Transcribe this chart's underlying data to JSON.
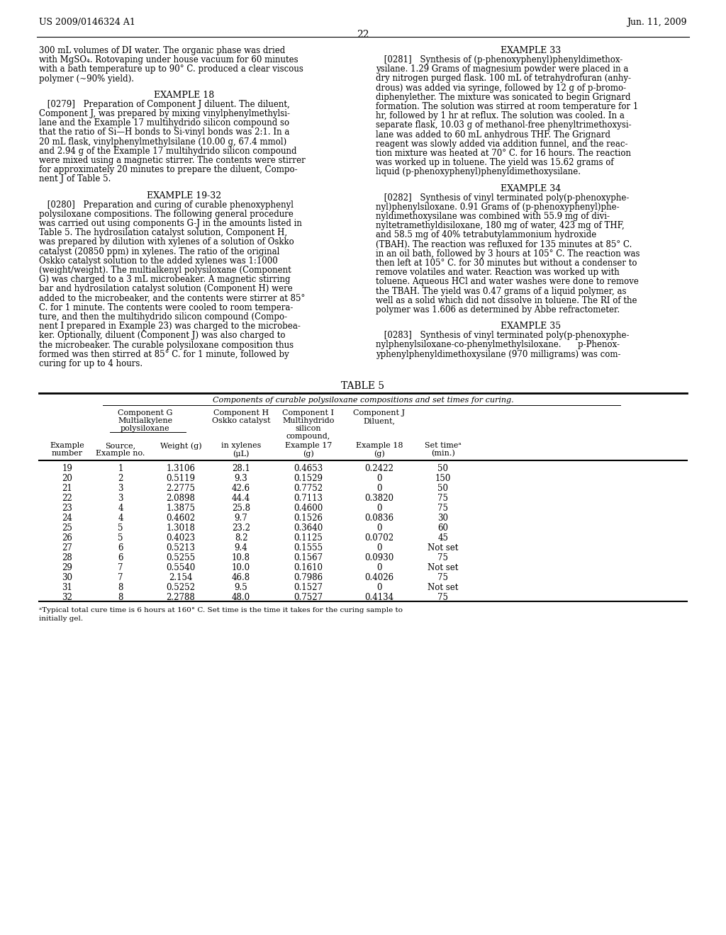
{
  "page_number": "22",
  "header_left": "US 2009/0146324 A1",
  "header_right": "Jun. 11, 2009",
  "background_color": "#ffffff",
  "left_col_para1": [
    "300 mL volumes of DI water. The organic phase was dried",
    "with MgSO₄. Rotovaping under house vacuum for 60 minutes",
    "with a bath temperature up to 90° C. produced a clear viscous",
    "polymer (~90% yield)."
  ],
  "ex18_heading": "EXAMPLE 18",
  "left_col_para2": [
    " [0279] Preparation of Component J diluent. The diluent,",
    "Component J, was prepared by mixing vinylphenylmethylsi-",
    "lane and the Example 17 multihydrido silicon compound so",
    "that the ratio of Si—H bonds to Si-vinyl bonds was 2:1. In a",
    "20 mL flask, vinylphenylmethylsilane (10.00 g, 67.4 mmol)",
    "and 2.94 g of the Example 17 multihydrido silicon compound",
    "were mixed using a magnetic stirrer. The contents were stirrer",
    "for approximately 20 minutes to prepare the diluent, Compo-",
    "nent J of Table 5."
  ],
  "ex1932_heading": "EXAMPLE 19-32",
  "left_col_para3": [
    " [0280] Preparation and curing of curable phenoxyphenyl",
    "polysiloxane compositions. The following general procedure",
    "was carried out using components G-J in the amounts listed in",
    "Table 5. The hydrosilation catalyst solution, Component H,",
    "was prepared by dilution with xylenes of a solution of Oskko",
    "catalyst (20850 ppm) in xylenes. The ratio of the original",
    "Oskko catalyst solution to the added xylenes was 1:1000",
    "(weight/weight). The multialkenyl polysiloxane (Component",
    "G) was charged to a 3 mL microbeaker. A magnetic stirring",
    "bar and hydrosilation catalyst solution (Component H) were",
    "added to the microbeaker, and the contents were stirrer at 85°",
    "C. for 1 minute. The contents were cooled to room tempera-",
    "ture, and then the multihydrido silicon compound (Compo-",
    "nent I prepared in Example 23) was charged to the microbea-",
    "ker. Optionally, diluent (Component J) was also charged to",
    "the microbeaker. The curable polysiloxane composition thus",
    "formed was then stirred at 85° C. for 1 minute, followed by",
    "curing for up to 4 hours."
  ],
  "ex33_heading": "EXAMPLE 33",
  "right_col_para1": [
    " [0281] Synthesis of (p-phenoxyphenyl)phenyldimethox-",
    "ysilane. 1.29 Grams of magnesium powder were placed in a",
    "dry nitrogen purged flask. 100 mL of tetrahydrofuran (anhy-",
    "drous) was added via syringe, followed by 12 g of p-bromo-",
    "diphenylether. The mixture was sonicated to begin Grignard",
    "formation. The solution was stirred at room temperature for 1",
    "hr, followed by 1 hr at reflux. The solution was cooled. In a",
    "separate flask, 10.03 g of methanol-free phenyltrimethoxysi-",
    "lane was added to 60 mL anhydrous THF. The Grignard",
    "reagent was slowly added via addition funnel, and the reac-",
    "tion mixture was heated at 70° C. for 16 hours. The reaction",
    "was worked up in toluene. The yield was 15.62 grams of",
    "liquid (p-phenoxyphenyl)phenyldimethoxysilane."
  ],
  "ex34_heading": "EXAMPLE 34",
  "right_col_para2": [
    " [0282] Synthesis of vinyl terminated poly(p-phenoxyphe-",
    "nyl)phenylsiloxane. 0.91 Grams of (p-phenoxyphenyl)phe-",
    "nyldimethoxysilane was combined with 55.9 mg of divi-",
    "nyltetramethyldisiloxane, 180 mg of water, 423 mg of THF,",
    "and 58.5 mg of 40% tetrabutylammonium hydroxide",
    "(TBAH). The reaction was refluxed for 135 minutes at 85° C.",
    "in an oil bath, followed by 3 hours at 105° C. The reaction was",
    "then left at 105° C. for 30 minutes but without a condenser to",
    "remove volatiles and water. Reaction was worked up with",
    "toluene. Aqueous HCl and water washes were done to remove",
    "the TBAH. The yield was 0.47 grams of a liquid polymer, as",
    "well as a solid which did not dissolve in toluene. The RI of the",
    "polymer was 1.606 as determined by Abbe refractometer."
  ],
  "ex35_heading": "EXAMPLE 35",
  "right_col_para3": [
    " [0283] Synthesis of vinyl terminated poly(p-phenoxyphe-",
    "nylphenylsiloxane-co-phenylmethylsiloxane.  p-Phenox-",
    "yphenylphenyldimethoxysilane (970 milligrams) was com-"
  ],
  "table_title": "TABLE 5",
  "table_caption": "Components of curable polysiloxane compositions and set times for curing.",
  "table_rows": [
    [
      "19",
      "1",
      "1.3106",
      "28.1",
      "0.4653",
      "0.2422",
      "50"
    ],
    [
      "20",
      "2",
      "0.5119",
      "9.3",
      "0.1529",
      "0",
      "150"
    ],
    [
      "21",
      "3",
      "2.2775",
      "42.6",
      "0.7752",
      "0",
      "50"
    ],
    [
      "22",
      "3",
      "2.0898",
      "44.4",
      "0.7113",
      "0.3820",
      "75"
    ],
    [
      "23",
      "4",
      "1.3875",
      "25.8",
      "0.4600",
      "0",
      "75"
    ],
    [
      "24",
      "4",
      "0.4602",
      "9.7",
      "0.1526",
      "0.0836",
      "30"
    ],
    [
      "25",
      "5",
      "1.3018",
      "23.2",
      "0.3640",
      "0",
      "60"
    ],
    [
      "26",
      "5",
      "0.4023",
      "8.2",
      "0.1125",
      "0.0702",
      "45"
    ],
    [
      "27",
      "6",
      "0.5213",
      "9.4",
      "0.1555",
      "0",
      "Not set"
    ],
    [
      "28",
      "6",
      "0.5255",
      "10.8",
      "0.1567",
      "0.0930",
      "75"
    ],
    [
      "29",
      "7",
      "0.5540",
      "10.0",
      "0.1610",
      "0",
      "Not set"
    ],
    [
      "30",
      "7",
      "2.154",
      "46.8",
      "0.7986",
      "0.4026",
      "75"
    ],
    [
      "31",
      "8",
      "0.5252",
      "9.5",
      "0.1527",
      "0",
      "Not set"
    ],
    [
      "32",
      "8",
      "2.2788",
      "48.0",
      "0.7527",
      "0.4134",
      "75"
    ]
  ],
  "table_footnote_line1": "ᵃTypical total cure time is 6 hours at 160° C. Set time is the time it takes for the curing sample to",
  "table_footnote_line2": "initially gel."
}
